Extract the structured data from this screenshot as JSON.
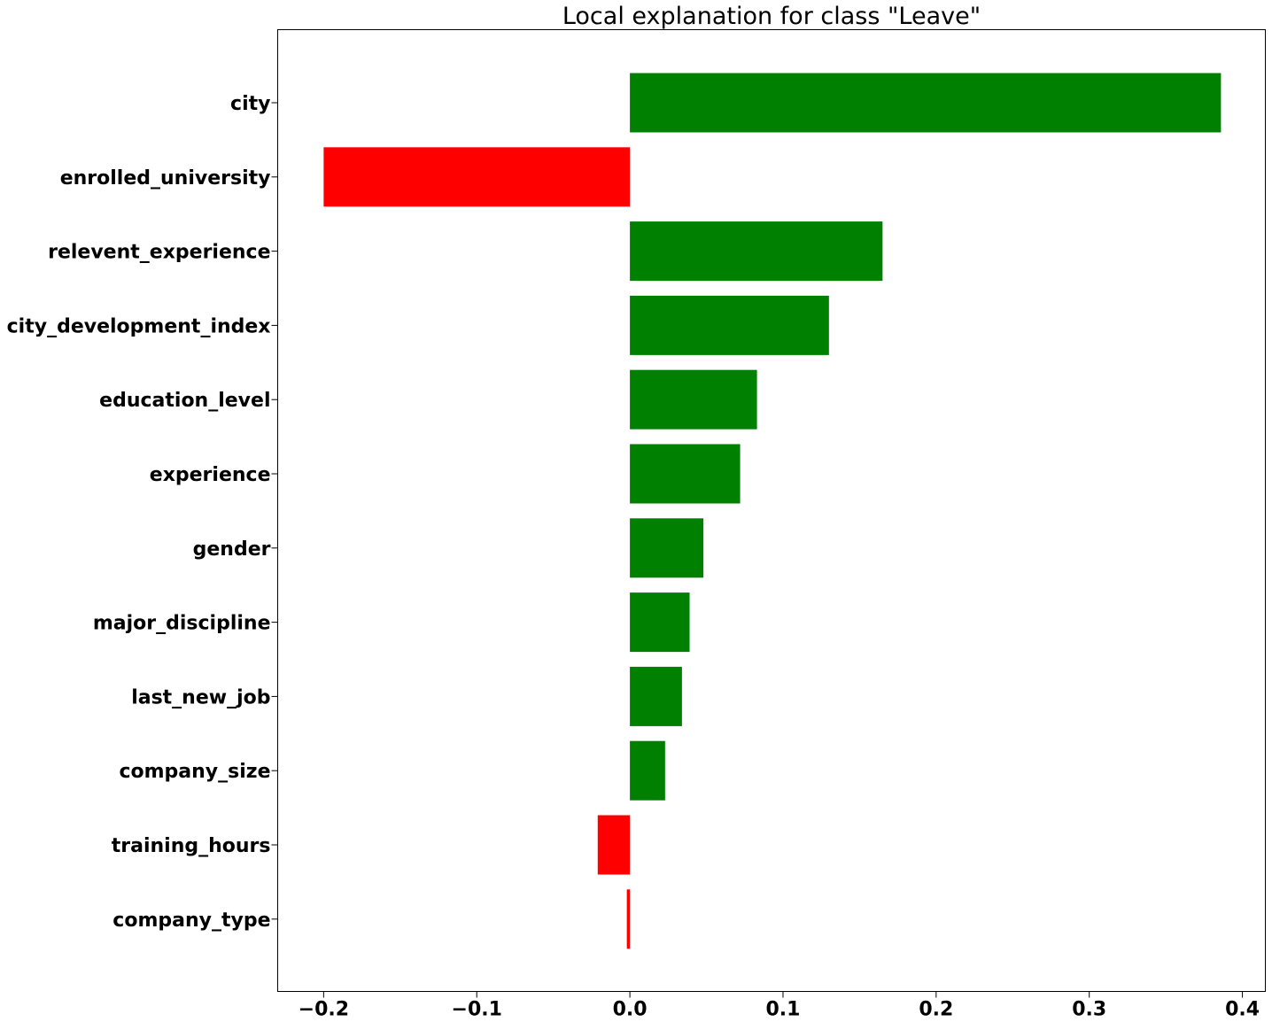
{
  "chart_data": {
    "type": "bar",
    "orientation": "horizontal",
    "title": "Local explanation for class \"Leave\"",
    "xlabel": "",
    "ylabel": "",
    "categories": [
      "city",
      "enrolled_university",
      "relevent_experience",
      "city_development_index",
      "education_level",
      "experience",
      "gender",
      "major_discipline",
      "last_new_job",
      "company_size",
      "training_hours",
      "company_type"
    ],
    "values": [
      0.386,
      -0.2,
      0.165,
      0.13,
      0.083,
      0.072,
      0.048,
      0.039,
      0.034,
      0.023,
      -0.021,
      -0.002
    ],
    "xlim": [
      -0.23,
      0.415
    ],
    "xticks": [
      -0.2,
      -0.1,
      0.0,
      0.1,
      0.2,
      0.3,
      0.4
    ],
    "xtick_labels": [
      "−0.2",
      "−0.1",
      "0.0",
      "0.1",
      "0.2",
      "0.3",
      "0.4"
    ],
    "grid": false,
    "colors": {
      "positive": "#008000",
      "negative": "#ff0000",
      "axis": "#000000"
    }
  }
}
